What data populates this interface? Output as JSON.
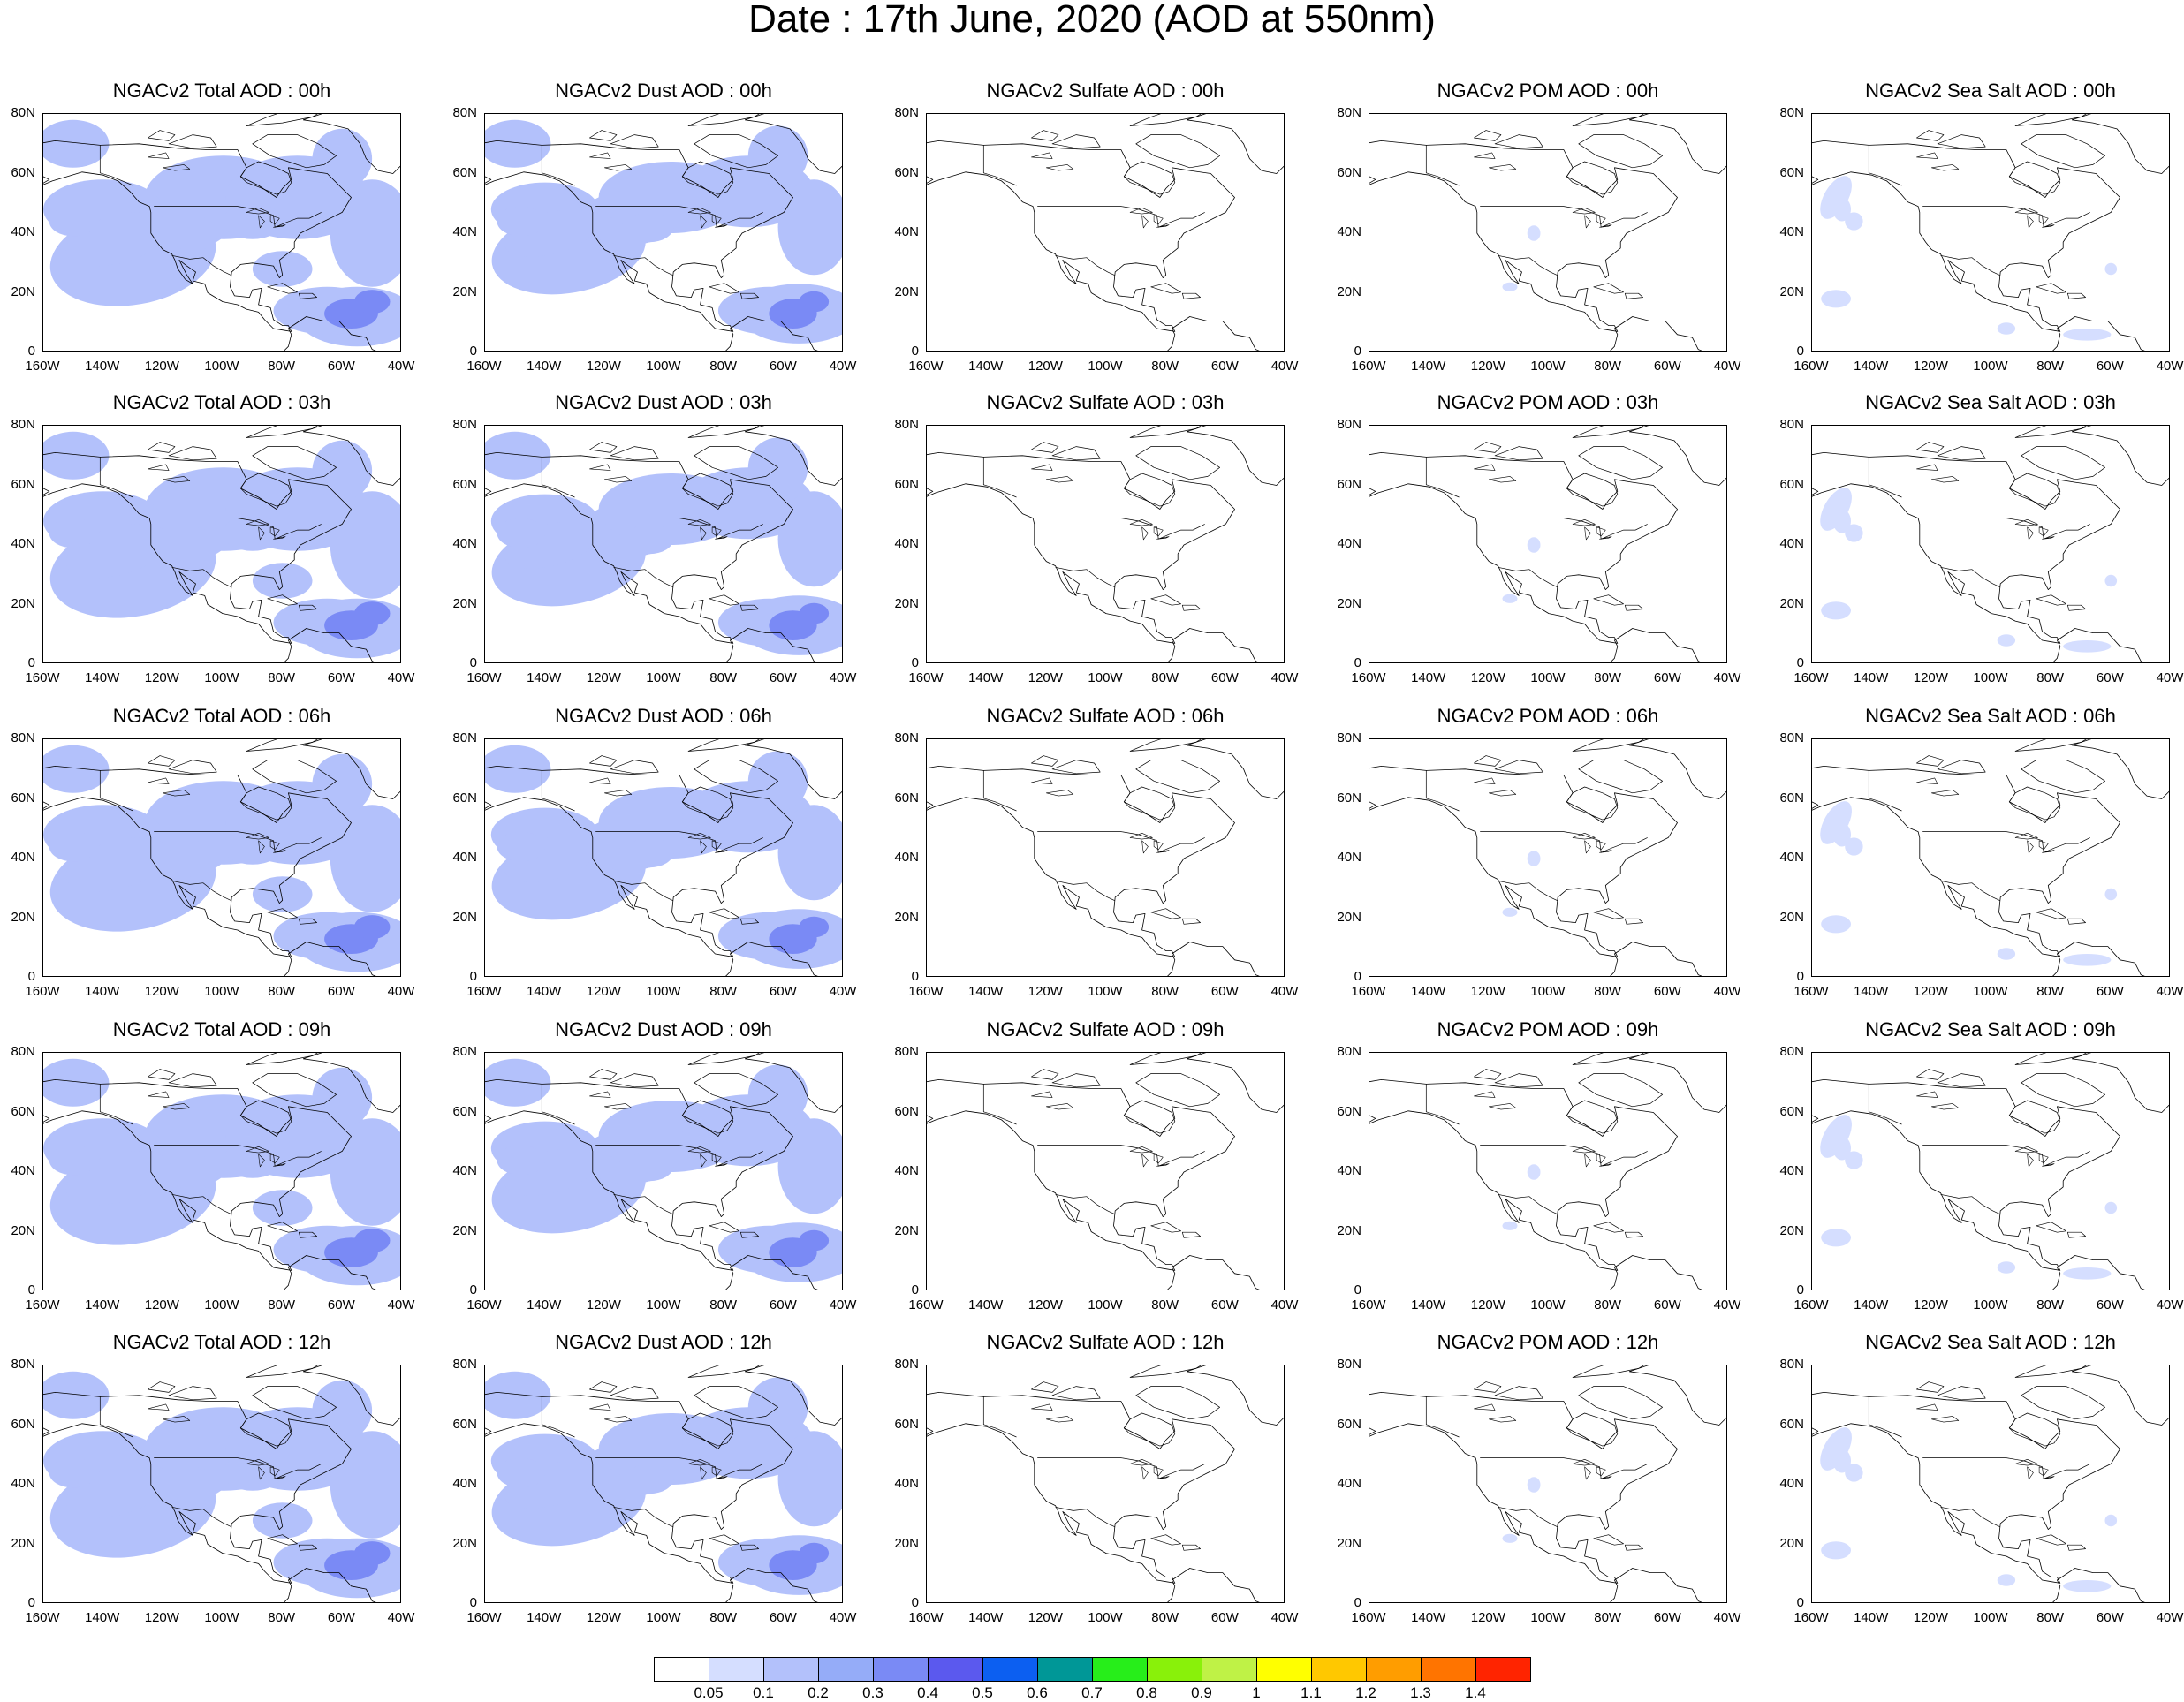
{
  "title": "Date : 17th June, 2020 (AOD at 550nm)",
  "panel_titles": [
    [
      "NGACv2 Total AOD : 00h",
      "NGACv2 Dust AOD : 00h",
      "NGACv2 Sulfate AOD : 00h",
      "NGACv2 POM AOD : 00h",
      "NGACv2 Sea Salt AOD : 00h"
    ],
    [
      "NGACv2 Total AOD : 03h",
      "NGACv2 Dust AOD : 03h",
      "NGACv2 Sulfate AOD : 03h",
      "NGACv2 POM AOD : 03h",
      "NGACv2 Sea Salt AOD : 03h"
    ],
    [
      "NGACv2 Total AOD : 06h",
      "NGACv2 Dust AOD : 06h",
      "NGACv2 Sulfate AOD : 06h",
      "NGACv2 POM AOD : 06h",
      "NGACv2 Sea Salt AOD : 06h"
    ],
    [
      "NGACv2 Total AOD : 09h",
      "NGACv2 Dust AOD : 09h",
      "NGACv2 Sulfate AOD : 09h",
      "NGACv2 POM AOD : 09h",
      "NGACv2 Sea Salt  AOD : 09h"
    ],
    [
      "NGACv2 Total AOD  : 12h",
      "NGACv2 Dust AOD : 12h",
      "NGACv2 Sulfate AOD : 12h",
      "NGACv2 POM  AOD : 12h",
      "NGACv2 Sea Salt  AOD : 12h"
    ]
  ],
  "species_levels": {
    "total": [
      0.12,
      0.18,
      0.32
    ],
    "dust": [
      0.12,
      0.18,
      0.32
    ],
    "sulfate": [
      0,
      0,
      0
    ],
    "pom": [
      0,
      0.08,
      0.12
    ],
    "seasalt": [
      0.07,
      0.08,
      0
    ]
  },
  "species_order": [
    "total",
    "dust",
    "sulfate",
    "pom",
    "seasalt"
  ],
  "lat_ticks": [
    "0",
    "20N",
    "40N",
    "60N",
    "80N"
  ],
  "lon_ticks": [
    "160W",
    "140W",
    "120W",
    "100W",
    "80W",
    "60W",
    "40W"
  ],
  "colorbar": {
    "colors": [
      "#ffffff",
      "#d5deff",
      "#b3c1fb",
      "#95acf8",
      "#7a8af5",
      "#5b59ee",
      "#0c5ff1",
      "#009797",
      "#27ee1a",
      "#89f10a",
      "#bff246",
      "#ffff00",
      "#ffc800",
      "#ff9d00",
      "#ff7400",
      "#ff2400"
    ],
    "labels": [
      "0.05",
      "0.1",
      "0.2",
      "0.3",
      "0.4",
      "0.5",
      "0.6",
      "0.7",
      "0.8",
      "0.9",
      "1",
      "1.1",
      "1.2",
      "1.3",
      "1.4"
    ]
  },
  "chart_data": {
    "type": "heatmap",
    "title": "Date : 17th June, 2020 (AOD at 550nm)",
    "xlim": [
      "160W",
      "40W"
    ],
    "ylim": [
      "0",
      "80N"
    ],
    "colorbar_levels": [
      0.05,
      0.1,
      0.2,
      0.3,
      0.4,
      0.5,
      0.6,
      0.7,
      0.8,
      0.9,
      1,
      1.1,
      1.2,
      1.3,
      1.4
    ]
  }
}
